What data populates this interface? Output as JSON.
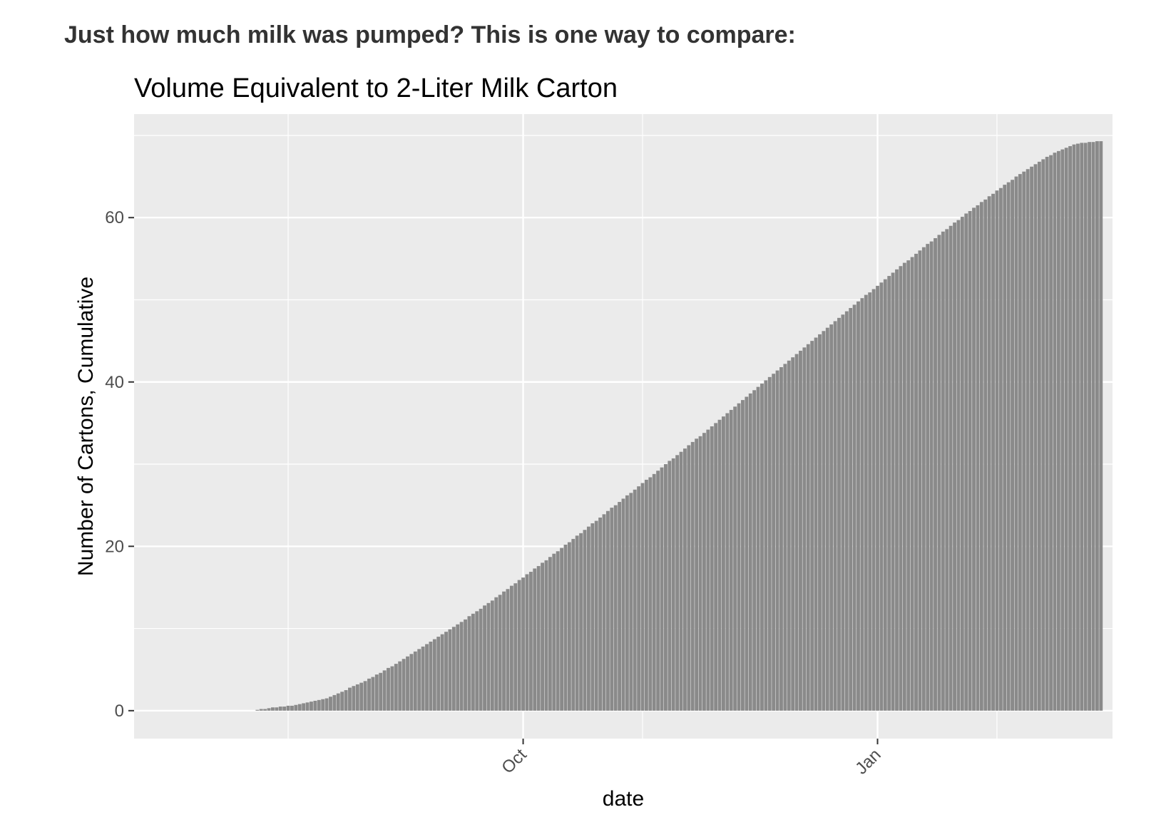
{
  "intro_text": "Just how much milk was pumped? This is one way to compare:",
  "colors": {
    "panel": "#ebebeb",
    "grid": "#ffffff",
    "bar": "#8a8a8a",
    "tick": "#333333"
  },
  "chart_data": {
    "type": "bar",
    "title": "Volume Equivalent to 2-Liter Milk Carton",
    "xlabel": "date",
    "ylabel": "Number of Cartons, Cumulative",
    "x_ticks": [
      {
        "label": "Oct",
        "date": "2017-10-01"
      },
      {
        "label": "Jan",
        "date": "2018-01-01"
      }
    ],
    "x_minor_dates": [
      "2017-08-01",
      "2017-11-01",
      "2018-02-01"
    ],
    "xlim": [
      "2017-06-22",
      "2018-03-03"
    ],
    "ylim": [
      -3.4,
      72.6
    ],
    "y_ticks": [
      0,
      20,
      40,
      60
    ],
    "y_minor": [
      10,
      30,
      50,
      70
    ],
    "grid": true,
    "series": [
      {
        "start_date": "2017-07-24",
        "step_days": 1,
        "values": [
          0.1,
          0.2,
          0.2,
          0.3,
          0.4,
          0.4,
          0.5,
          0.5,
          0.6,
          0.6,
          0.7,
          0.8,
          0.9,
          1.0,
          1.1,
          1.2,
          1.3,
          1.4,
          1.5,
          1.7,
          1.9,
          2.1,
          2.3,
          2.5,
          2.8,
          3.0,
          3.2,
          3.4,
          3.6,
          3.9,
          4.1,
          4.4,
          4.6,
          4.9,
          5.2,
          5.4,
          5.7,
          6.0,
          6.3,
          6.6,
          6.9,
          7.2,
          7.5,
          7.8,
          8.1,
          8.4,
          8.7,
          9.0,
          9.3,
          9.6,
          9.9,
          10.2,
          10.5,
          10.8,
          11.1,
          11.5,
          11.8,
          12.1,
          12.4,
          12.8,
          13.1,
          13.4,
          13.8,
          14.1,
          14.5,
          14.8,
          15.2,
          15.5,
          15.9,
          16.2,
          16.6,
          16.9,
          17.3,
          17.6,
          18.0,
          18.3,
          18.7,
          19.1,
          19.4,
          19.8,
          20.2,
          20.5,
          20.9,
          21.3,
          21.6,
          22.0,
          22.4,
          22.8,
          23.1,
          23.5,
          23.9,
          24.3,
          24.7,
          25.0,
          25.4,
          25.8,
          26.2,
          26.5,
          26.9,
          27.3,
          27.7,
          28.1,
          28.4,
          28.8,
          29.2,
          29.6,
          30.0,
          30.4,
          30.7,
          31.1,
          31.5,
          31.9,
          32.3,
          32.7,
          33.1,
          33.4,
          33.8,
          34.2,
          34.6,
          35.0,
          35.4,
          35.8,
          36.2,
          36.6,
          37.0,
          37.4,
          37.8,
          38.2,
          38.6,
          39.0,
          39.4,
          39.8,
          40.2,
          40.6,
          41.0,
          41.4,
          41.8,
          42.2,
          42.6,
          43.0,
          43.4,
          43.8,
          44.2,
          44.6,
          45.0,
          45.4,
          45.8,
          46.2,
          46.6,
          47.0,
          47.4,
          47.8,
          48.2,
          48.6,
          49.0,
          49.4,
          49.8,
          50.2,
          50.6,
          50.9,
          51.3,
          51.7,
          52.1,
          52.5,
          52.9,
          53.3,
          53.7,
          54.1,
          54.5,
          54.8,
          55.2,
          55.6,
          56.0,
          56.4,
          56.8,
          57.1,
          57.5,
          57.9,
          58.3,
          58.6,
          59.0,
          59.4,
          59.7,
          60.1,
          60.5,
          60.8,
          61.2,
          61.5,
          61.9,
          62.2,
          62.6,
          62.9,
          63.3,
          63.6,
          64.0,
          64.3,
          64.6,
          65.0,
          65.3,
          65.6,
          65.9,
          66.2,
          66.5,
          66.8,
          67.1,
          67.4,
          67.6,
          67.9,
          68.1,
          68.3,
          68.5,
          68.7,
          68.9,
          69.0,
          69.1,
          69.1,
          69.2,
          69.2,
          69.3,
          69.3
        ]
      }
    ]
  }
}
